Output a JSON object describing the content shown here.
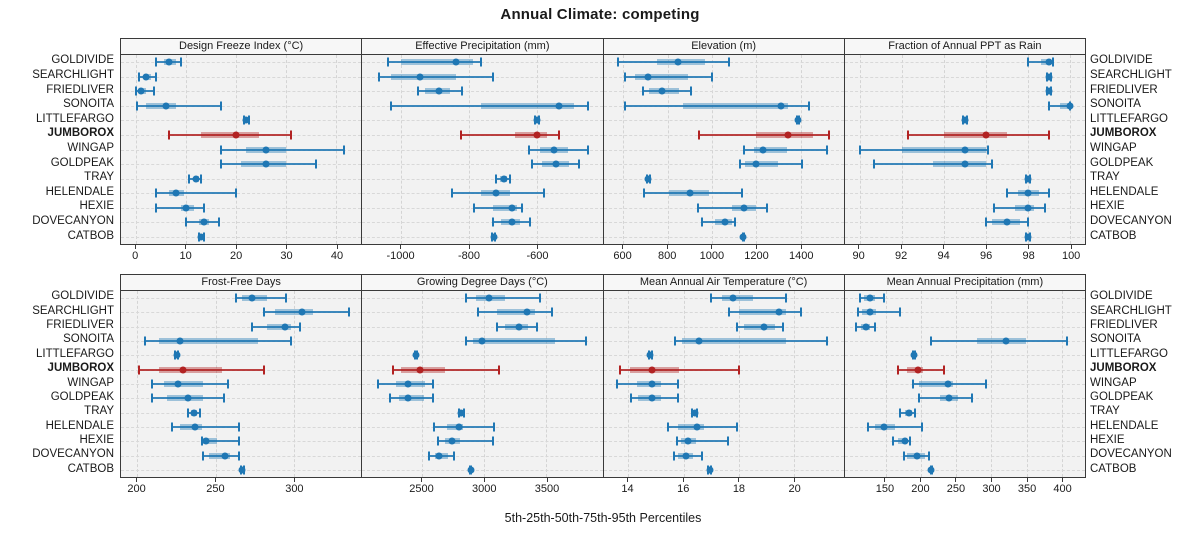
{
  "title": "Annual Climate: competing",
  "caption": "5th-25th-50th-75th-95th Percentiles",
  "stations": [
    "GOLDIVIDE",
    "SEARCHLIGHT",
    "FRIEDLIVER",
    "SONOITA",
    "LITTLEFARGO",
    "JUMBOROX",
    "WINGAP",
    "GOLDPEAK",
    "TRAY",
    "HELENDALE",
    "HEXIE",
    "DOVECANYON",
    "CATBOB"
  ],
  "emphasized_station": "JUMBOROX",
  "colors": {
    "series_normal": "#1F77B4",
    "series_highlight": "#B22222",
    "plot_background": "#F2F2F2",
    "strip_background": "#F7F7F7",
    "panel_border": "#3A3A3A",
    "gridline": "#D6D6D6"
  },
  "chart_data": {
    "type": "dotplot-percentiles",
    "percentiles": [
      5,
      25,
      50,
      75,
      95
    ],
    "note": "values arrays are [p5,p25,p50,p75,p95] per station, station order matches stations list",
    "panels": [
      {
        "title": "Design Freeze Index (°C)",
        "xlim": [
          -3,
          45
        ],
        "ticks": [
          0,
          10,
          20,
          30,
          40
        ],
        "values": [
          [
            4,
            5.5,
            6.5,
            8,
            9
          ],
          [
            0.5,
            1.5,
            2,
            3,
            4
          ],
          [
            0,
            0.5,
            1,
            2,
            3.5
          ],
          [
            0.2,
            2,
            6,
            8,
            17
          ],
          [
            21.5,
            21.8,
            22,
            22.2,
            22.5
          ],
          [
            6.5,
            13,
            20,
            24.5,
            31
          ],
          [
            17,
            22,
            26,
            30,
            41.5
          ],
          [
            17,
            21,
            26,
            30,
            36
          ],
          [
            10.5,
            11.5,
            12,
            12.5,
            13
          ],
          [
            4,
            6.5,
            8,
            9.5,
            20
          ],
          [
            4,
            9,
            10,
            11.5,
            13.5
          ],
          [
            10,
            12.5,
            13.5,
            14.5,
            16.5
          ],
          [
            12.5,
            12.8,
            13,
            13.2,
            13.5
          ]
        ]
      },
      {
        "title": "Effective Precipitation (mm)",
        "xlim": [
          -1115,
          -407
        ],
        "ticks": [
          -1000,
          -800,
          -600
        ],
        "values": [
          [
            -1040,
            -1000,
            -840,
            -790,
            -765
          ],
          [
            -1065,
            -1030,
            -945,
            -840,
            -730
          ],
          [
            -950,
            -930,
            -890,
            -855,
            -820
          ],
          [
            -1030,
            -765,
            -535,
            -490,
            -450
          ],
          [
            -605,
            -602,
            -600,
            -598,
            -595
          ],
          [
            -825,
            -665,
            -600,
            -570,
            -535
          ],
          [
            -625,
            -590,
            -550,
            -510,
            -450
          ],
          [
            -615,
            -585,
            -545,
            -505,
            -475
          ],
          [
            -720,
            -708,
            -698,
            -688,
            -680
          ],
          [
            -850,
            -765,
            -720,
            -680,
            -580
          ],
          [
            -785,
            -730,
            -675,
            -660,
            -645
          ],
          [
            -730,
            -705,
            -675,
            -650,
            -620
          ],
          [
            -732,
            -730,
            -728,
            -726,
            -724
          ]
        ]
      },
      {
        "title": "Elevation (m)",
        "xlim": [
          510,
          1595
        ],
        "ticks": [
          600,
          800,
          1000,
          1200,
          1400
        ],
        "values": [
          [
            575,
            750,
            845,
            970,
            1075
          ],
          [
            605,
            650,
            710,
            890,
            1000
          ],
          [
            690,
            715,
            775,
            850,
            905
          ],
          [
            605,
            870,
            1310,
            1345,
            1440
          ],
          [
            1385,
            1388,
            1390,
            1392,
            1395
          ],
          [
            940,
            1200,
            1345,
            1455,
            1530
          ],
          [
            1145,
            1190,
            1230,
            1340,
            1520
          ],
          [
            1128,
            1150,
            1200,
            1300,
            1405
          ],
          [
            705,
            710,
            712,
            715,
            720
          ],
          [
            695,
            805,
            900,
            985,
            1135
          ],
          [
            935,
            1090,
            1145,
            1200,
            1250
          ],
          [
            955,
            1015,
            1060,
            1090,
            1105
          ],
          [
            1138,
            1140,
            1142,
            1144,
            1146
          ]
        ]
      },
      {
        "title": "Fraction of Annual PPT as Rain",
        "xlim": [
          89.3,
          100.7
        ],
        "ticks": [
          90,
          92,
          94,
          96,
          98,
          100
        ],
        "values": [
          [
            98,
            98.6,
            99,
            99.1,
            99.2
          ],
          [
            98.9,
            99,
            99,
            99,
            99.1
          ],
          [
            98.9,
            99,
            99,
            99,
            99.1
          ],
          [
            99,
            99.5,
            100,
            100,
            100
          ],
          [
            94.9,
            95,
            95,
            95,
            95.1
          ],
          [
            92.3,
            94,
            96,
            97,
            99
          ],
          [
            90,
            92,
            95,
            96,
            96.1
          ],
          [
            90.7,
            93.5,
            95,
            96,
            96.3
          ],
          [
            97.9,
            98,
            98,
            98,
            98.1
          ],
          [
            97,
            97.5,
            98,
            98.5,
            99
          ],
          [
            96.4,
            97.4,
            98,
            98.3,
            98.8
          ],
          [
            96,
            96.3,
            97,
            97.6,
            98
          ],
          [
            97.9,
            98,
            98,
            98,
            98.1
          ]
        ]
      },
      {
        "title": "Frost-Free Days",
        "xlim": [
          189.5,
          343
        ],
        "ticks": [
          200,
          250,
          300
        ],
        "values": [
          [
            263,
            267,
            273,
            283,
            295
          ],
          [
            281,
            288,
            305,
            312,
            335
          ],
          [
            273,
            283,
            294,
            298,
            304
          ],
          [
            205,
            214,
            227,
            277,
            298
          ],
          [
            224,
            224.5,
            225,
            225.5,
            226
          ],
          [
            201,
            214,
            229,
            254,
            281
          ],
          [
            209,
            217,
            226,
            242,
            258
          ],
          [
            209,
            219,
            232,
            242,
            255
          ],
          [
            232,
            234,
            236,
            238,
            240
          ],
          [
            222,
            227,
            237,
            241,
            265
          ],
          [
            241,
            242,
            244,
            251,
            265
          ],
          [
            242,
            246,
            256,
            259,
            265
          ],
          [
            266,
            266.5,
            267,
            267.5,
            268
          ]
        ]
      },
      {
        "title": "Growing Degree Days (°C)",
        "xlim": [
          2020,
          3950
        ],
        "ticks": [
          2500,
          3000,
          3500
        ],
        "values": [
          [
            2850,
            2935,
            3040,
            3170,
            3445
          ],
          [
            2950,
            3100,
            3340,
            3410,
            3545
          ],
          [
            3105,
            3170,
            3280,
            3355,
            3420
          ],
          [
            2850,
            2910,
            2980,
            3565,
            3815
          ],
          [
            2445,
            2450,
            2452,
            2455,
            2458
          ],
          [
            2270,
            2330,
            2487,
            2685,
            3120
          ],
          [
            2145,
            2290,
            2390,
            2525,
            2585
          ],
          [
            2245,
            2315,
            2390,
            2515,
            2585
          ],
          [
            2797,
            2808,
            2816,
            2826,
            2840
          ],
          [
            2598,
            2697,
            2795,
            2830,
            3080
          ],
          [
            2627,
            2684,
            2745,
            2803,
            3074
          ],
          [
            2560,
            2605,
            2640,
            2710,
            2758
          ],
          [
            2885,
            2888,
            2890,
            2892,
            2895
          ]
        ]
      },
      {
        "title": "Mean Annual Air Temperature (°C)",
        "xlim": [
          13.1,
          21.8
        ],
        "ticks": [
          14,
          16,
          18,
          20
        ],
        "values": [
          [
            17.0,
            17.4,
            17.8,
            18.5,
            19.7
          ],
          [
            17.65,
            18.0,
            19.45,
            19.7,
            20.25
          ],
          [
            17.95,
            18.2,
            18.9,
            19.3,
            19.6
          ],
          [
            15.7,
            15.95,
            16.55,
            19.7,
            21.2
          ],
          [
            14.75,
            14.78,
            14.8,
            14.82,
            14.85
          ],
          [
            13.7,
            14.05,
            14.85,
            15.85,
            18.0
          ],
          [
            13.6,
            14.3,
            14.85,
            15.2,
            15.8
          ],
          [
            14.1,
            14.35,
            14.85,
            15.2,
            15.8
          ],
          [
            16.3,
            16.35,
            16.4,
            16.45,
            16.5
          ],
          [
            15.45,
            15.8,
            16.5,
            16.75,
            17.95
          ],
          [
            15.75,
            15.9,
            16.15,
            16.45,
            17.6
          ],
          [
            15.65,
            15.8,
            16.1,
            16.35,
            16.65
          ],
          [
            16.9,
            16.93,
            16.95,
            16.97,
            17.0
          ]
        ]
      },
      {
        "title": "Mean Annual Precipitation (mm)",
        "xlim": [
          92,
          433
        ],
        "ticks": [
          150,
          200,
          250,
          300,
          350,
          400
        ],
        "values": [
          [
            113,
            119,
            128,
            135,
            147
          ],
          [
            111,
            117,
            128,
            137,
            171
          ],
          [
            108,
            115,
            122,
            128,
            135
          ],
          [
            215,
            279,
            321,
            349,
            408
          ],
          [
            189,
            190,
            190,
            191,
            192
          ],
          [
            167,
            180,
            196,
            203,
            233
          ],
          [
            189,
            198,
            238,
            246,
            292
          ],
          [
            198,
            227,
            240,
            253,
            273
          ],
          [
            170,
            177,
            183,
            188,
            192
          ],
          [
            125,
            135,
            148,
            163,
            202
          ],
          [
            160,
            168,
            177,
            181,
            184
          ],
          [
            176,
            181,
            195,
            206,
            212
          ],
          [
            214,
            215,
            215,
            215,
            216
          ]
        ]
      }
    ]
  }
}
